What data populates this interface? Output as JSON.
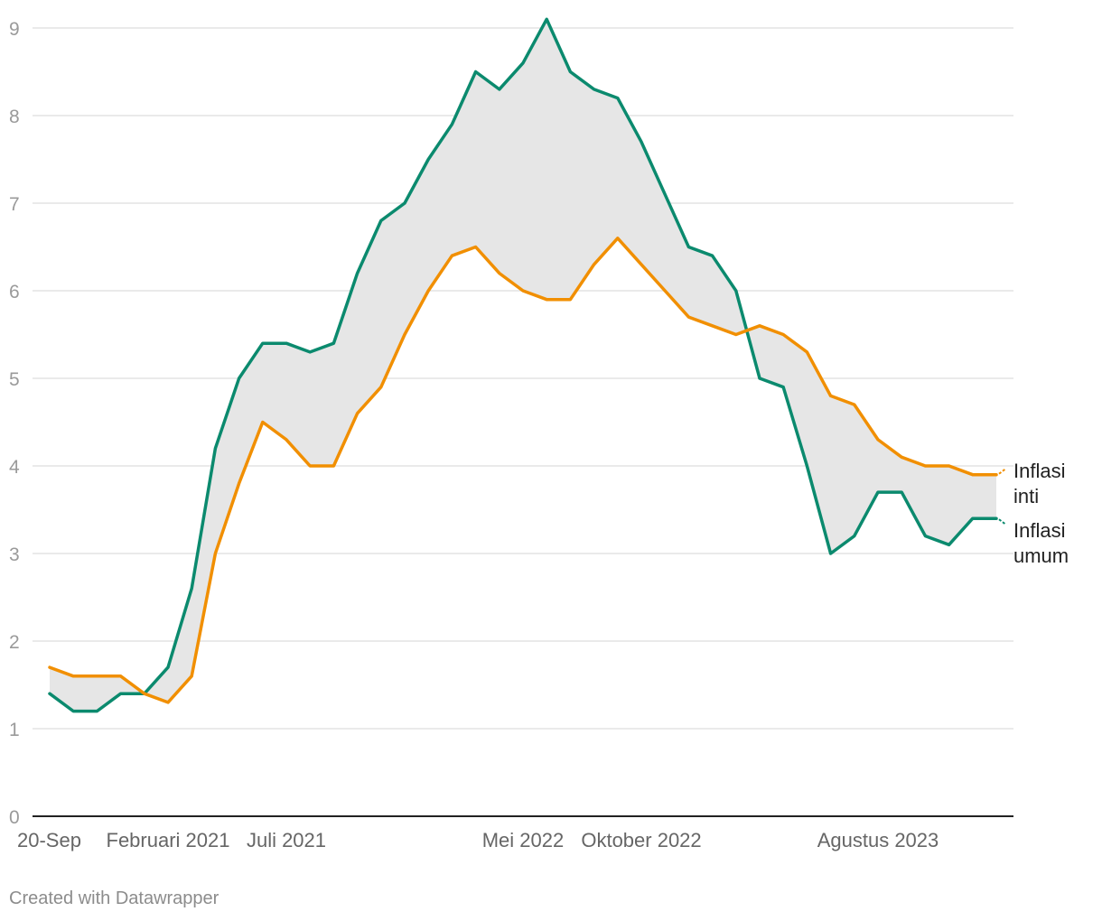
{
  "chart_data": {
    "type": "line",
    "x": [
      "2020-09",
      "2020-10",
      "2020-11",
      "2020-12",
      "2021-01",
      "2021-02",
      "2021-03",
      "2021-04",
      "2021-05",
      "2021-06",
      "2021-07",
      "2021-08",
      "2021-09",
      "2021-10",
      "2021-11",
      "2021-12",
      "2022-01",
      "2022-02",
      "2022-03",
      "2022-04",
      "2022-05",
      "2022-06",
      "2022-07",
      "2022-08",
      "2022-09",
      "2022-10",
      "2022-11",
      "2022-12",
      "2023-01",
      "2023-02",
      "2023-03",
      "2023-04",
      "2023-05",
      "2023-06",
      "2023-07",
      "2023-08",
      "2023-09",
      "2023-10",
      "2023-11",
      "2023-12",
      "2024-01"
    ],
    "series": [
      {
        "name": "Inflasi umum",
        "color": "#0b8a6e",
        "values": [
          1.4,
          1.2,
          1.2,
          1.4,
          1.4,
          1.7,
          2.6,
          4.2,
          5.0,
          5.4,
          5.4,
          5.3,
          5.4,
          6.2,
          6.8,
          7.0,
          7.5,
          7.9,
          8.5,
          8.3,
          8.6,
          9.1,
          8.5,
          8.3,
          8.2,
          7.7,
          7.1,
          6.5,
          6.4,
          6.0,
          5.0,
          4.9,
          4.0,
          3.0,
          3.2,
          3.7,
          3.7,
          3.2,
          3.1,
          3.4,
          3.4
        ]
      },
      {
        "name": "Inflasi inti",
        "color": "#f18f01",
        "values": [
          1.7,
          1.6,
          1.6,
          1.6,
          1.4,
          1.3,
          1.6,
          3.0,
          3.8,
          4.5,
          4.3,
          4.0,
          4.0,
          4.6,
          4.9,
          5.5,
          6.0,
          6.4,
          6.5,
          6.2,
          6.0,
          5.9,
          5.9,
          6.3,
          6.6,
          6.3,
          6.0,
          5.7,
          5.6,
          5.5,
          5.6,
          5.5,
          5.3,
          4.8,
          4.7,
          4.3,
          4.1,
          4.0,
          4.0,
          3.9,
          3.9
        ]
      }
    ],
    "label_lines": {
      "inti": [
        "Inflasi",
        "inti"
      ],
      "umum": [
        "Inflasi",
        "umum"
      ]
    },
    "xticks": [
      {
        "index": 0,
        "label": "20-Sep"
      },
      {
        "index": 5,
        "label": "Februari 2021"
      },
      {
        "index": 10,
        "label": "Juli 2021"
      },
      {
        "index": 20,
        "label": "Mei 2022"
      },
      {
        "index": 25,
        "label": "Oktober 2022"
      },
      {
        "index": 35,
        "label": "Agustus 2023"
      }
    ],
    "yticks": [
      0,
      1,
      2,
      3,
      4,
      5,
      6,
      7,
      8,
      9
    ],
    "ylim": [
      0,
      9
    ],
    "grid": true,
    "fill_between": true,
    "fill_color": "#e6e6e6"
  },
  "footer": {
    "credit": "Created with Datawrapper"
  }
}
